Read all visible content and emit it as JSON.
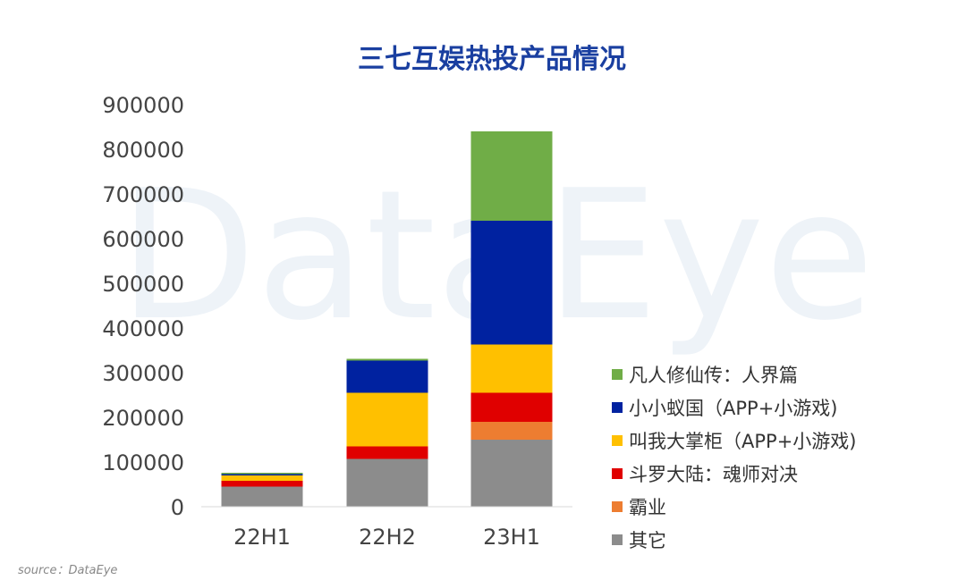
{
  "watermark": "DataEye",
  "source": "source：DataEye",
  "chart_data": {
    "type": "bar",
    "stacked": true,
    "title": "三七互娱热投产品情况",
    "xlabel": "",
    "ylabel": "",
    "categories": [
      "22H1",
      "22H2",
      "23H1"
    ],
    "ylim": [
      0,
      900000
    ],
    "yticks": [
      0,
      100000,
      200000,
      300000,
      400000,
      500000,
      600000,
      700000,
      800000,
      900000
    ],
    "grid": false,
    "legend_position": "right",
    "series": [
      {
        "name": "其它",
        "color": "#8c8c8c",
        "values": [
          45000,
          107000,
          150000
        ]
      },
      {
        "name": "霸业",
        "color": "#ed7d31",
        "values": [
          0,
          0,
          40000
        ]
      },
      {
        "name": "斗罗大陆：魂师对决",
        "color": "#e00000",
        "values": [
          13000,
          28000,
          65000
        ]
      },
      {
        "name": "叫我大掌柜（APP+小游戏)",
        "color": "#ffc000",
        "values": [
          12000,
          120000,
          108000
        ]
      },
      {
        "name": "小小蚁国（APP+小游戏)",
        "color": "#0022a0",
        "values": [
          3000,
          72000,
          277000
        ]
      },
      {
        "name": "凡人修仙传：人界篇",
        "color": "#70ad47",
        "values": [
          3000,
          4000,
          200000
        ]
      }
    ]
  }
}
